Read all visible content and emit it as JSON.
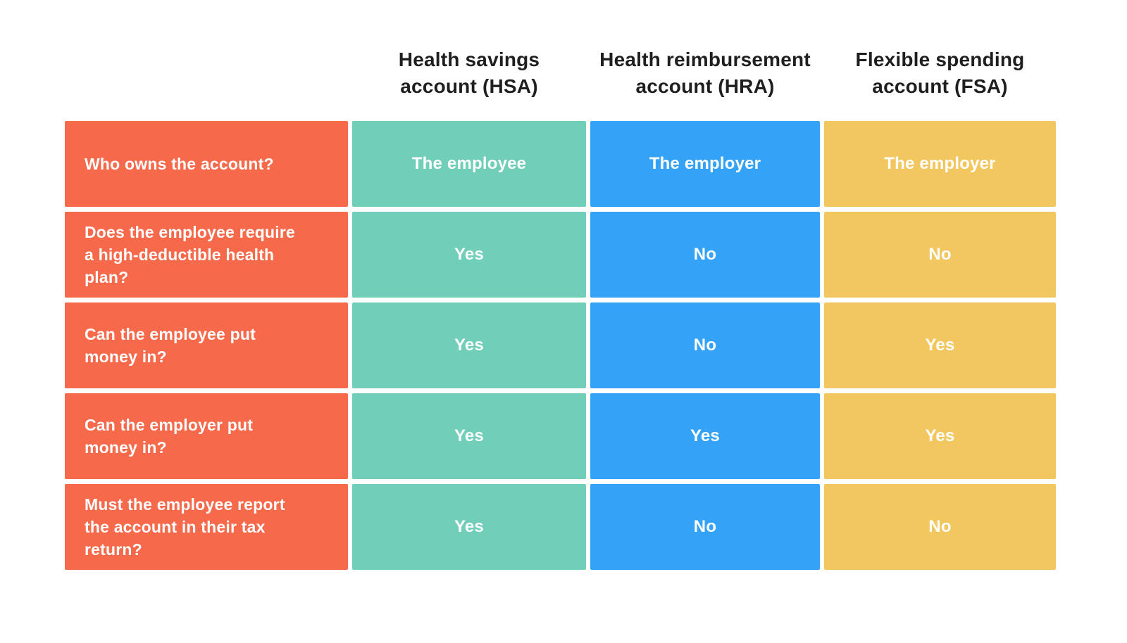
{
  "colors": {
    "question": "#F6694B",
    "hsa": "#70CEB9",
    "hra": "#34A3F7",
    "fsa": "#F3C75F",
    "header_text": "#1F1F1F",
    "cell_text": "#FFFFFF",
    "background": "#FFFFFF"
  },
  "table": {
    "headers": [
      "Health savings\naccount (HSA)",
      "Health reimbursement\naccount (HRA)",
      "Flexible spending\naccount (FSA)"
    ],
    "rows": [
      {
        "question": "Who owns the account?",
        "answers": [
          "The employee",
          "The employer",
          "The employer"
        ]
      },
      {
        "question": "Does the employee require\na high-deductible health\nplan?",
        "answers": [
          "Yes",
          "No",
          "No"
        ]
      },
      {
        "question": "Can the employee put\nmoney in?",
        "answers": [
          "Yes",
          "No",
          "Yes"
        ]
      },
      {
        "question": "Can the employer put\nmoney in?",
        "answers": [
          "Yes",
          "Yes",
          "Yes"
        ]
      },
      {
        "question": "Must the employee report\nthe account in their tax\nreturn?",
        "answers": [
          "Yes",
          "No",
          "No"
        ]
      }
    ]
  },
  "chart_data": {
    "type": "table",
    "columns": [
      "",
      "Health savings account (HSA)",
      "Health reimbursement account (HRA)",
      "Flexible spending account (FSA)"
    ],
    "rows": [
      [
        "Who owns the account?",
        "The employee",
        "The employer",
        "The employer"
      ],
      [
        "Does the employee require a high-deductible health plan?",
        "Yes",
        "No",
        "No"
      ],
      [
        "Can the employee put money in?",
        "Yes",
        "No",
        "Yes"
      ],
      [
        "Can the employer put money in?",
        "Yes",
        "Yes",
        "Yes"
      ],
      [
        "Must the employee report the account in their tax return?",
        "Yes",
        "No",
        "No"
      ]
    ]
  }
}
